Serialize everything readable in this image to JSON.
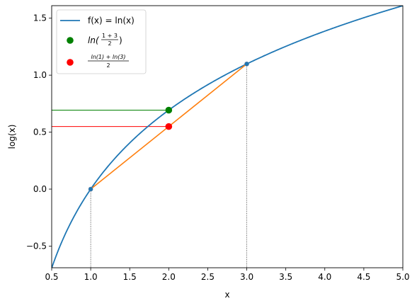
{
  "chart_data": {
    "type": "line",
    "xlabel": "x",
    "ylabel": "log(x)",
    "xlim": [
      0.5,
      5.0
    ],
    "ylim": [
      -0.69,
      1.61
    ],
    "xticks": [
      0.5,
      1.0,
      1.5,
      2.0,
      2.5,
      3.0,
      3.5,
      4.0,
      4.5,
      5.0
    ],
    "xtick_labels": [
      "0.5",
      "1.0",
      "1.5",
      "2.0",
      "2.5",
      "3.0",
      "3.5",
      "4.0",
      "4.5",
      "5.0"
    ],
    "yticks": [
      -0.5,
      0.0,
      0.5,
      1.0,
      1.5
    ],
    "ytick_labels": [
      "−0.5",
      "0.0",
      "0.5",
      "1.0",
      "1.5"
    ],
    "grid": false,
    "legend_position": "top-left",
    "colors": {
      "curve": "#1f77b4",
      "chord": "#ff7f0e",
      "green": "#008000",
      "red": "#ff0000",
      "guide": "#000000"
    },
    "curve": {
      "name": "f(x) = ln(x)",
      "function": "ln",
      "x_range": [
        0.5,
        5.0
      ]
    },
    "chord": {
      "x": [
        1,
        3
      ],
      "y": [
        0.0,
        1.0986
      ]
    },
    "endpoints": {
      "x": [
        1,
        3
      ],
      "y": [
        0.0,
        1.0986
      ]
    },
    "points": [
      {
        "name": "ln((1+3)/2)",
        "x": 2,
        "y": 0.6931,
        "color": "#008000"
      },
      {
        "name": "(ln(1)+ln(3))/2",
        "x": 2,
        "y": 0.5493,
        "color": "#ff0000"
      }
    ],
    "vertical_guides": [
      1,
      3
    ],
    "legend": {
      "curve_label": "f(x) = ln(x)",
      "green_prefix": "ln(",
      "green_num": "1 + 3",
      "green_den": "2",
      "green_suffix": ")",
      "red_num": "ln(1) + ln(3)",
      "red_den": "2"
    }
  }
}
